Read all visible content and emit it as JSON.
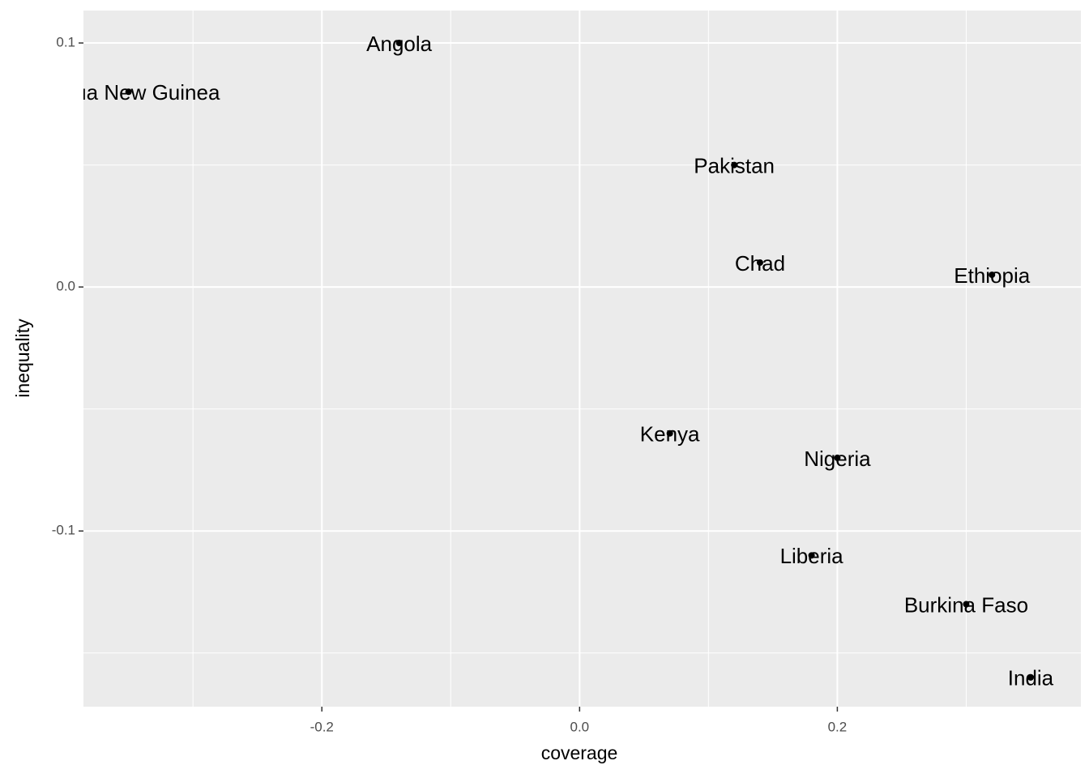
{
  "chart_data": {
    "type": "scatter",
    "x_label": "coverage",
    "y_label": "inequality",
    "labels": [
      "Papua New Guinea",
      "Angola",
      "Pakistan",
      "Chad",
      "Ethiopia",
      "Kenya",
      "Nigeria",
      "Liberia",
      "Burkina Faso",
      "India"
    ],
    "x": [
      -0.35,
      -0.14,
      0.12,
      0.14,
      0.32,
      0.07,
      0.2,
      0.18,
      0.3,
      0.35
    ],
    "values": [
      0.08,
      0.1,
      0.05,
      0.01,
      0.005,
      -0.06,
      -0.07,
      -0.11,
      -0.13,
      -0.16
    ],
    "color": "#000000",
    "xlim": [
      -0.385,
      0.389
    ],
    "ylim": [
      -0.172,
      0.1133
    ],
    "xticks": [
      -0.2,
      {
        "value": 0,
        "label": "0.0"
      },
      0.2
    ],
    "yticks": [
      -0.1,
      {
        "value": 0,
        "label": "0.0"
      },
      0.1
    ],
    "xminor": [
      -0.3,
      -0.1,
      0.1,
      0.3
    ],
    "yminor": [
      -0.15,
      -0.05,
      0.05
    ],
    "grid": true
  }
}
